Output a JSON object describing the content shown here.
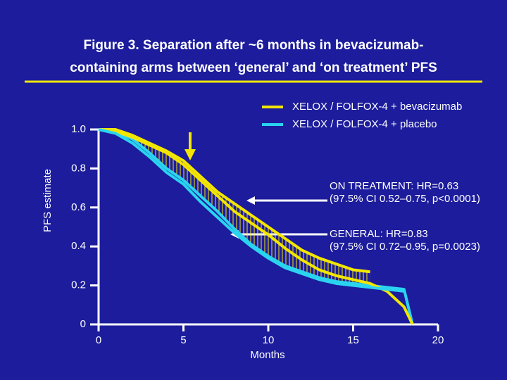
{
  "chart_data": {
    "type": "line",
    "title": [
      "Figure 3. Separation after ~6 months in bevacizumab-",
      "containing arms between ‘general’ and ‘on treatment’ PFS"
    ],
    "x_label": "Months",
    "y_label": "PFS estimate",
    "x": [
      0,
      1,
      2,
      3,
      4,
      5,
      6,
      7,
      8,
      9,
      10,
      11,
      12,
      13,
      14,
      15,
      16,
      17,
      18,
      18.5
    ],
    "series": [
      {
        "name": "XELOX / FOLFOX-4 + bevacizumab",
        "color": "#f2e600",
        "values": [
          1.0,
          1.0,
          0.97,
          0.93,
          0.89,
          0.84,
          0.76,
          0.68,
          0.62,
          0.56,
          0.5,
          0.44,
          0.38,
          0.34,
          0.31,
          0.28,
          0.27,
          null,
          null,
          null
        ]
      },
      {
        "name": "XELOX / FOLFOX-4 + placebo",
        "color": "#2ad4f0",
        "values": [
          1.0,
          0.99,
          0.95,
          0.88,
          0.8,
          0.74,
          0.66,
          0.58,
          0.49,
          0.41,
          0.35,
          0.3,
          0.27,
          0.24,
          0.22,
          0.21,
          0.2,
          0.19,
          0.18,
          0
        ]
      },
      {
        "color": "#f2e600",
        "values": [
          1.0,
          0.99,
          0.96,
          0.92,
          0.88,
          0.82,
          0.74,
          0.66,
          0.58,
          0.52,
          0.46,
          0.39,
          0.33,
          0.28,
          0.25,
          0.23,
          0.21,
          0.17,
          0.09,
          0
        ]
      },
      {
        "color": "#2ad4f0",
        "values": [
          1.0,
          0.98,
          0.93,
          0.86,
          0.78,
          0.72,
          0.63,
          0.55,
          0.47,
          0.4,
          0.34,
          0.29,
          0.26,
          0.23,
          0.21,
          0.2,
          0.19,
          0.18,
          0.17,
          null
        ]
      }
    ],
    "annotations": [
      {
        "lines": [
          "ON TREATMENT: HR=0.63",
          "(97.5% CI 0.52–0.75, p<0.0001)"
        ]
      },
      {
        "lines": [
          "GENERAL: HR=0.83",
          "(97.5% CI 0.72–0.95, p=0.0023)"
        ]
      }
    ],
    "xlim": [
      0,
      20
    ],
    "ylim": [
      0,
      1
    ],
    "xticks": [
      0,
      5,
      10,
      15,
      20
    ],
    "yticks": [
      0,
      0.2,
      0.4,
      0.6,
      0.8,
      {
        "value": 1,
        "label": "1.0"
      }
    ],
    "grid": false
  }
}
